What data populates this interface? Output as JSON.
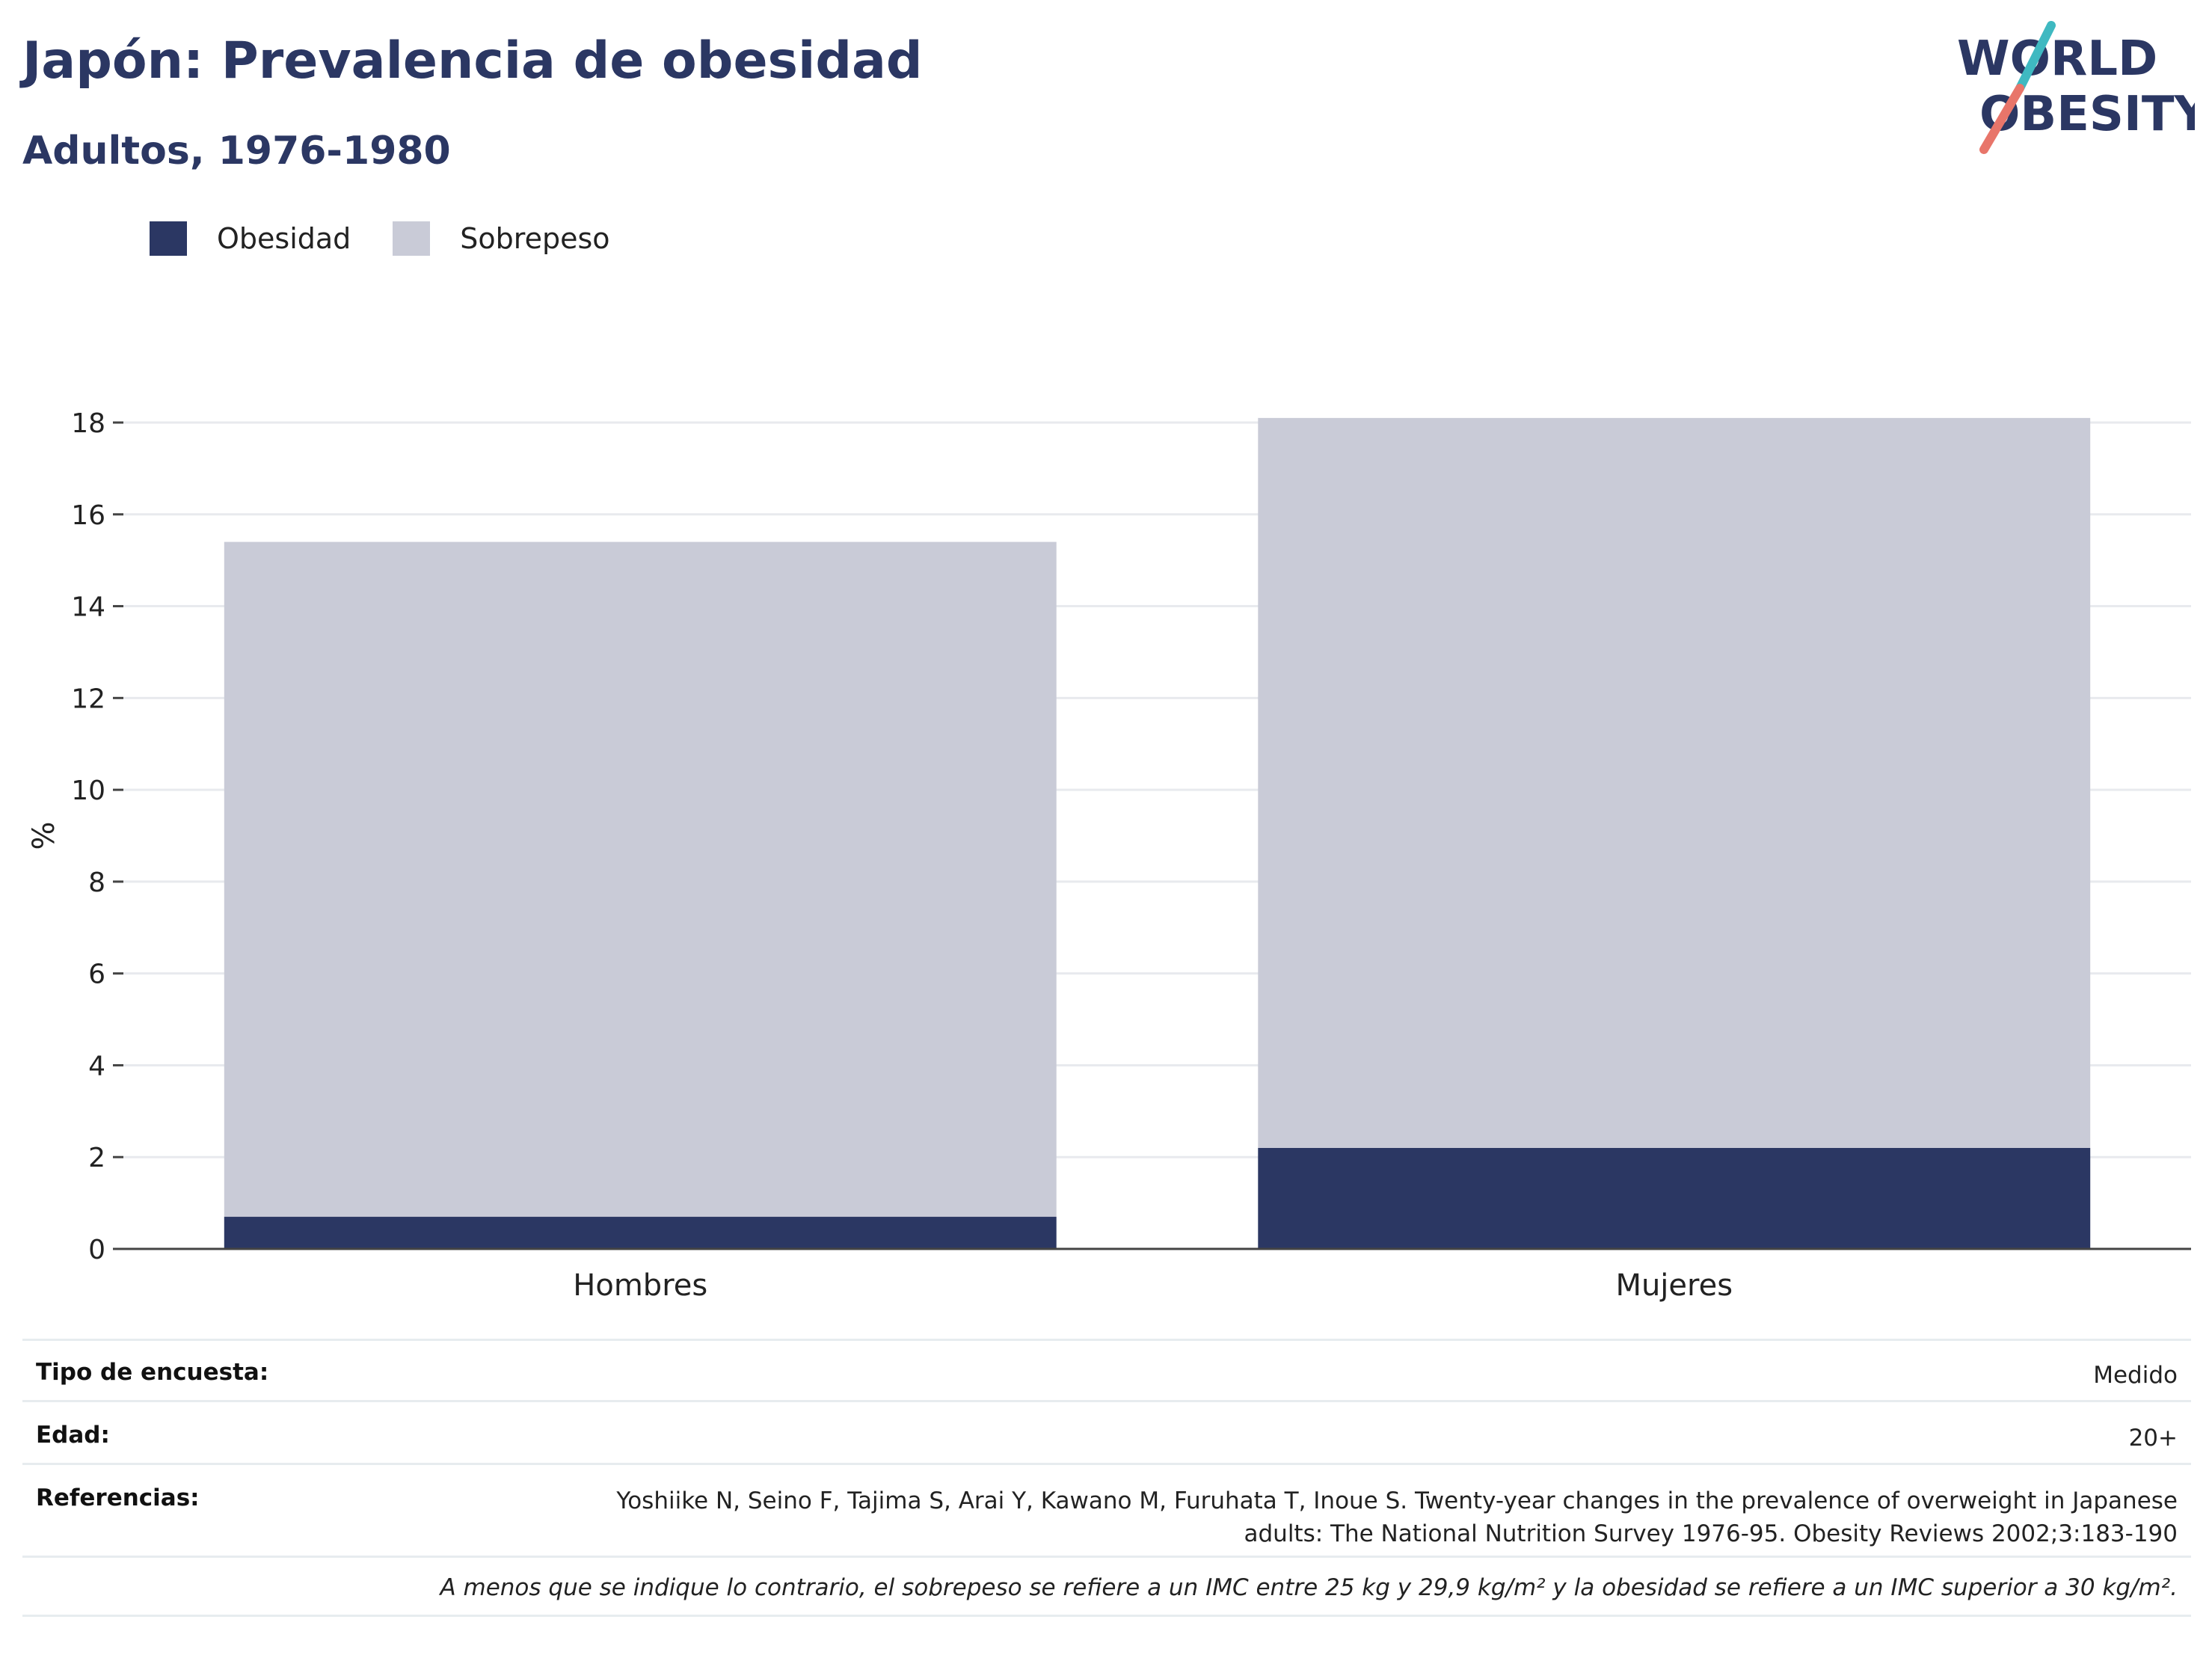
{
  "header": {
    "title": "Japón: Prevalencia de obesidad",
    "subtitle": "Adultos, 1976-1980"
  },
  "logo": {
    "line1": "WORLD",
    "line2": "OBESITY",
    "colors": {
      "text": "#2b3763",
      "slash_top": "#3fb9c1",
      "slash_bottom": "#e8756a"
    }
  },
  "colors": {
    "obesity": "#2b3763",
    "overweight": "#c9cbd7",
    "grid": "#e8eaee",
    "axis": "#444444"
  },
  "chart_data": {
    "type": "bar",
    "stacked": true,
    "categories": [
      "Hombres",
      "Mujeres"
    ],
    "series": [
      {
        "name": "Obesidad",
        "values": [
          0.7,
          2.2
        ],
        "color": "#2b3763"
      },
      {
        "name": "Sobrepeso",
        "values": [
          14.7,
          15.9
        ],
        "color": "#c9cbd7"
      }
    ],
    "ylabel": "%",
    "ylim": [
      0,
      18
    ],
    "yticks": [
      "0",
      "2",
      "4",
      "6",
      "8",
      "10",
      "12",
      "14",
      "16",
      "18"
    ],
    "grid": true,
    "legend_position": "top-left"
  },
  "info": {
    "survey_type": {
      "label": "Tipo de encuesta:",
      "value": "Medido"
    },
    "age": {
      "label": "Edad:",
      "value": "20+"
    },
    "references": {
      "label": "Referencias:",
      "line1": "Yoshiike N, Seino F, Tajima S, Arai Y, Kawano M, Furuhata T, Inoue S. Twenty-year changes in the prevalence of overweight in Japanese",
      "line2": "adults: The National Nutrition Survey 1976-95. Obesity Reviews 2002;3:183-190"
    },
    "note": "A menos que se indique lo contrario, el sobrepeso se refiere a un IMC entre 25 kg y 29,9 kg/m² y la obesidad se refiere a un IMC superior a 30 kg/m²."
  }
}
